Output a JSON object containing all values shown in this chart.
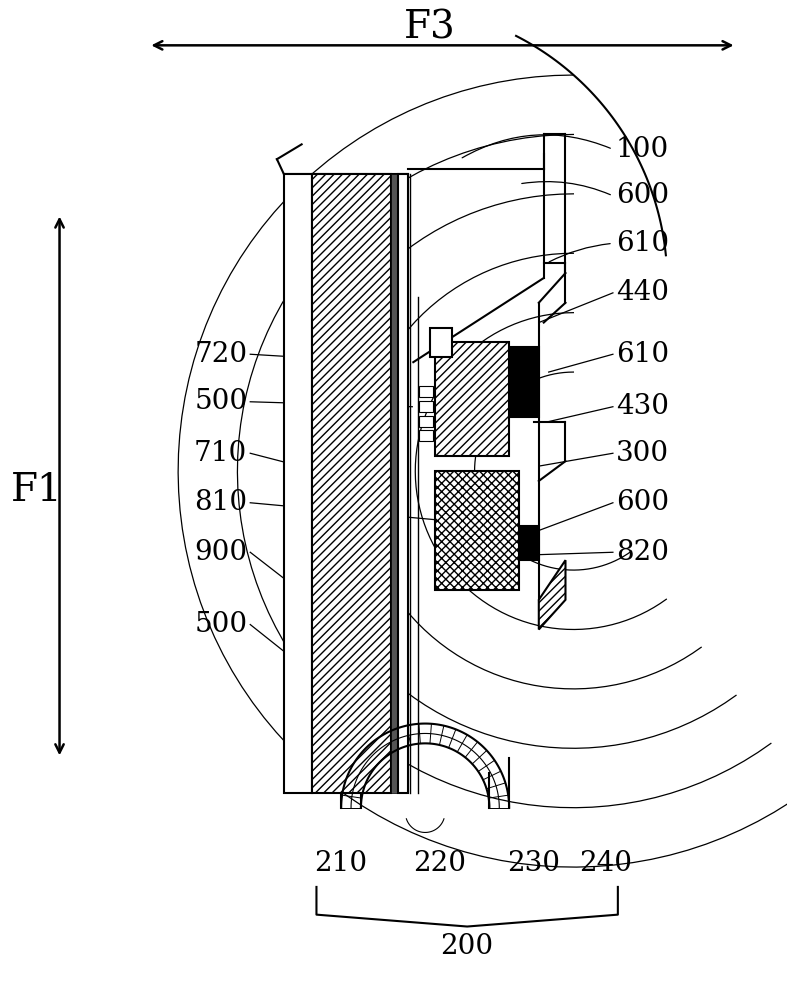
{
  "fig_width": 7.91,
  "fig_height": 10.0,
  "dpi": 100,
  "bg_color": "#ffffff",
  "line_color": "#000000"
}
